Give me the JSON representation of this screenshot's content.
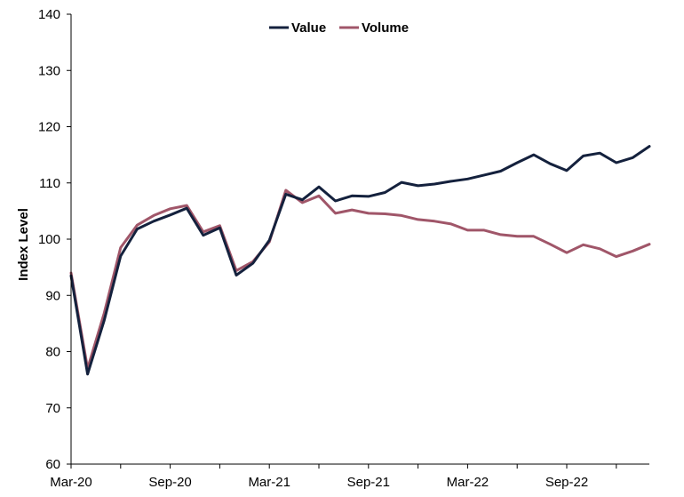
{
  "chart_data": {
    "type": "line",
    "title": "",
    "xlabel": "",
    "ylabel": "Index Level",
    "ylim": [
      60,
      140
    ],
    "yticks": [
      60,
      70,
      80,
      90,
      100,
      110,
      120,
      130,
      140
    ],
    "x": [
      "2020-03",
      "2020-04",
      "2020-05",
      "2020-06",
      "2020-07",
      "2020-08",
      "2020-09",
      "2020-10",
      "2020-11",
      "2020-12",
      "2021-01",
      "2021-02",
      "2021-03",
      "2021-04",
      "2021-05",
      "2021-06",
      "2021-07",
      "2021-08",
      "2021-09",
      "2021-10",
      "2021-11",
      "2021-12",
      "2022-01",
      "2022-02",
      "2022-03",
      "2022-04",
      "2022-05",
      "2022-06",
      "2022-07",
      "2022-08",
      "2022-09",
      "2022-10",
      "2022-11",
      "2022-12",
      "2023-01",
      "2023-02"
    ],
    "xtick_labels": [
      {
        "x": "2020-03",
        "label": "Mar-20"
      },
      {
        "x": "2020-09",
        "label": "Sep-20"
      },
      {
        "x": "2021-03",
        "label": "Mar-21"
      },
      {
        "x": "2021-09",
        "label": "Sep-21"
      },
      {
        "x": "2022-03",
        "label": "Mar-22"
      },
      {
        "x": "2022-09",
        "label": "Sep-22"
      }
    ],
    "grid": false,
    "legend_position": "top-center",
    "series": [
      {
        "name": "Value",
        "color": "#14213d",
        "values": [
          93.5,
          76.0,
          85.5,
          97.0,
          101.8,
          103.2,
          104.3,
          105.5,
          100.7,
          102.0,
          93.6,
          95.7,
          99.8,
          108.0,
          107.0,
          109.3,
          106.8,
          107.7,
          107.6,
          108.3,
          110.1,
          109.5,
          109.8,
          110.3,
          110.7,
          111.4,
          112.1,
          113.6,
          115.0,
          113.4,
          112.2,
          114.8,
          115.3,
          113.6,
          114.5,
          116.5
        ]
      },
      {
        "name": "Volume",
        "color": "#a05669",
        "values": [
          94.0,
          77.0,
          86.8,
          98.5,
          102.5,
          104.2,
          105.4,
          106.0,
          101.3,
          102.4,
          94.4,
          96.0,
          99.5,
          108.7,
          106.5,
          107.7,
          104.6,
          105.2,
          104.6,
          104.5,
          104.2,
          103.5,
          103.2,
          102.7,
          101.6,
          101.6,
          100.8,
          100.5,
          100.5,
          99.1,
          97.6,
          99.0,
          98.3,
          96.9,
          97.9,
          99.1
        ]
      }
    ]
  }
}
